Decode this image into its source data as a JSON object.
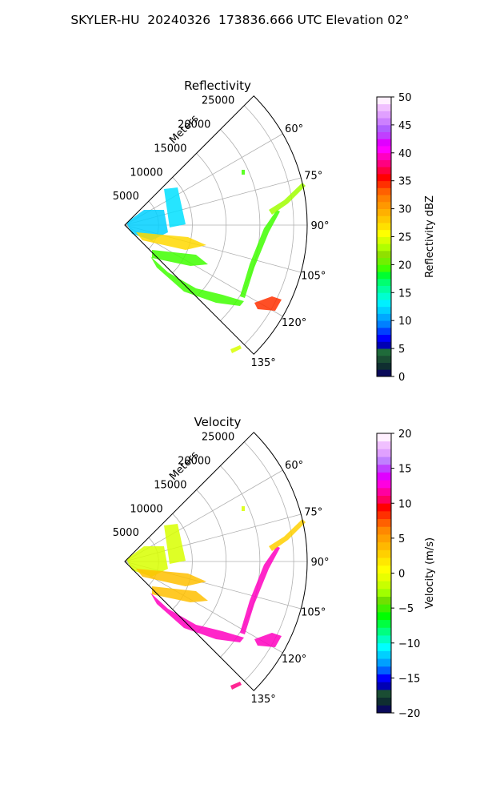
{
  "suptitle": "SKYLER-HU  20240326  173836.666 UTC Elevation 02°",
  "chart_data": [
    {
      "type": "polar-sector-ppi",
      "title": "Reflectivity",
      "radial_label": "Meters",
      "r_ticks": [
        5000,
        10000,
        15000,
        20000,
        25000
      ],
      "r_max": 27000,
      "theta_range_deg": [
        45,
        135
      ],
      "theta_ticks": [
        "60°",
        "75°",
        "90°",
        "105°",
        "120°",
        "135°"
      ],
      "grid": true,
      "colorbar": {
        "label": "Reflectivity dBZ",
        "vmin": 0,
        "vmax": 50,
        "ticks": [
          "0",
          "5",
          "10",
          "15",
          "20",
          "25",
          "30",
          "35",
          "40",
          "45",
          "50"
        ],
        "colors": [
          "#0a0a5a",
          "#0f2e30",
          "#1a4d33",
          "#1f6b3a",
          "#0000b4",
          "#0000ff",
          "#0040ff",
          "#0080ff",
          "#00a8ff",
          "#00d0ff",
          "#00f0ff",
          "#00ffd0",
          "#00ffa0",
          "#00ff70",
          "#00ff30",
          "#40ff00",
          "#70f000",
          "#90e000",
          "#b0ff00",
          "#d8ff00",
          "#ffff00",
          "#ffe000",
          "#ffc800",
          "#ffb000",
          "#ff9800",
          "#ff8000",
          "#ff6000",
          "#ff3000",
          "#ff0000",
          "#ff0040",
          "#ff0080",
          "#ff00c0",
          "#ff00ff",
          "#e000ff",
          "#c040ff",
          "#b060ff",
          "#cc80ff",
          "#e0a0ff",
          "#f0c0ff",
          "#fff0ff"
        ]
      }
    },
    {
      "type": "polar-sector-ppi",
      "title": "Velocity",
      "radial_label": "Meters",
      "r_ticks": [
        5000,
        10000,
        15000,
        20000,
        25000
      ],
      "r_max": 27000,
      "theta_range_deg": [
        45,
        135
      ],
      "theta_ticks": [
        "60°",
        "75°",
        "90°",
        "105°",
        "120°",
        "135°"
      ],
      "grid": true,
      "colorbar": {
        "label": "Velocity (m/s)",
        "vmin": -20,
        "vmax": 20,
        "ticks": [
          "−20",
          "−15",
          "−10",
          "−5",
          "0",
          "5",
          "10",
          "15",
          "20"
        ],
        "colors": [
          "#0a0a5a",
          "#0f2e30",
          "#1a4d33",
          "#0000b4",
          "#0000ff",
          "#0060ff",
          "#00a0ff",
          "#00d0ff",
          "#00ffff",
          "#00ffc0",
          "#00ff80",
          "#00ff40",
          "#00ff00",
          "#40f000",
          "#70e000",
          "#a0ff00",
          "#c8ff00",
          "#e8ff00",
          "#ffff00",
          "#ffe800",
          "#ffd000",
          "#ffb800",
          "#ffa000",
          "#ff8800",
          "#ff6000",
          "#ff3000",
          "#ff0000",
          "#ff0060",
          "#ff00a0",
          "#ff00e0",
          "#e000ff",
          "#c040ff",
          "#c080ff",
          "#e0a0ff",
          "#f0c0ff",
          "#fff0ff"
        ]
      }
    }
  ]
}
